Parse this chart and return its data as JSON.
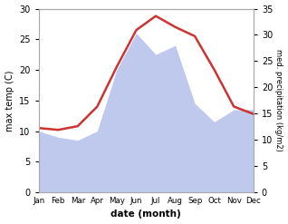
{
  "months": [
    "Jan",
    "Feb",
    "Mar",
    "Apr",
    "May",
    "Jun",
    "Jul",
    "Aug",
    "Sep",
    "Oct",
    "Nov",
    "Dec"
  ],
  "temp_max": [
    10.5,
    10.2,
    10.8,
    14.0,
    20.5,
    26.5,
    28.8,
    27.0,
    25.5,
    20.0,
    14.0,
    12.8
  ],
  "precip": [
    10.0,
    9.0,
    8.5,
    10.0,
    20.0,
    26.0,
    22.5,
    24.0,
    14.5,
    11.5,
    13.5,
    13.5
  ],
  "temp_color": "#cc3333",
  "precip_fill_color": "#bfc9ee",
  "temp_ylim": [
    0,
    30
  ],
  "precip_ylim": [
    0,
    35
  ],
  "temp_yticks": [
    0,
    5,
    10,
    15,
    20,
    25,
    30
  ],
  "precip_yticks": [
    0,
    5,
    10,
    15,
    20,
    25,
    30,
    35
  ],
  "xlabel": "date (month)",
  "ylabel_left": "max temp (C)",
  "ylabel_right": "med. precipitation (kg/m2)",
  "bg_color": "#ffffff",
  "spine_color": "#aaaaaa",
  "grid_color": "#e0e0e0"
}
